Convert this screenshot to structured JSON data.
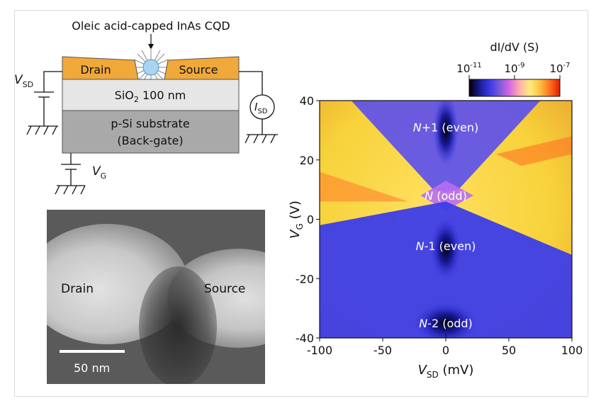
{
  "schematic": {
    "cqd_label": "Oleic acid-capped InAs CQD",
    "drain": "Drain",
    "source": "Source",
    "oxide": "SiO",
    "oxide_sub": "2",
    "oxide_rest": " 100 nm",
    "substrate_line1": "p-Si substrate",
    "substrate_line2": "(Back-gate)",
    "vsd_main": "V",
    "vsd_sub": "SD",
    "isd_main": "I",
    "isd_sub": "SD",
    "vg_main": "V",
    "vg_sub": "G"
  },
  "sem": {
    "drain": "Drain",
    "source": "Source",
    "scale_bar": "50 nm"
  },
  "colorbar": {
    "title": "dI/dV (S)",
    "ticks": [
      "10-11",
      "10-9",
      "10-7"
    ],
    "colors": [
      "#000000",
      "#1a1a8c",
      "#3838e6",
      "#7a5ad8",
      "#d866e6",
      "#ffb0a8",
      "#ffeb80",
      "#ffc040",
      "#ff7020",
      "#e02000"
    ]
  },
  "chart_data": {
    "type": "heatmap",
    "xlabel": "VSD (mV)",
    "ylabel": "VG (V)",
    "xlim": [
      -100,
      100
    ],
    "ylim": [
      -40,
      40
    ],
    "xticks": [
      -100,
      -50,
      0,
      50,
      100
    ],
    "yticks": [
      40,
      20,
      0,
      -20,
      -40
    ],
    "annotations": [
      {
        "text": "N+1 (even)",
        "x": 0,
        "y": 31
      },
      {
        "text": "N (odd)",
        "x": 0,
        "y": 8
      },
      {
        "text": "N-1 (even)",
        "x": 0,
        "y": -9
      },
      {
        "text": "N-2 (odd)",
        "x": 0,
        "y": -35
      }
    ]
  }
}
